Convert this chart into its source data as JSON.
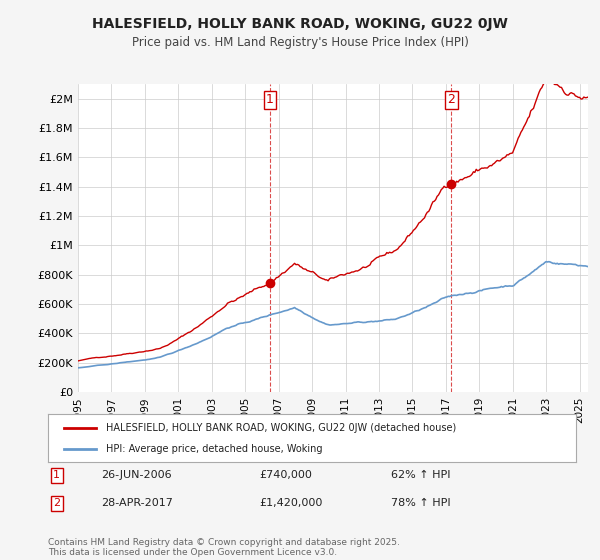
{
  "title": "HALESFIELD, HOLLY BANK ROAD, WOKING, GU22 0JW",
  "subtitle": "Price paid vs. HM Land Registry's House Price Index (HPI)",
  "ylabel_ticks": [
    "£0",
    "£200K",
    "£400K",
    "£600K",
    "£800K",
    "£1M",
    "£1.2M",
    "£1.4M",
    "£1.6M",
    "£1.8M",
    "£2M"
  ],
  "ytick_values": [
    0,
    200000,
    400000,
    600000,
    800000,
    1000000,
    1200000,
    1400000,
    1600000,
    1800000,
    2000000
  ],
  "ylim": [
    0,
    2100000
  ],
  "xlim_start": 1995.0,
  "xlim_end": 2025.5,
  "sale1_x": 2006.486,
  "sale1_y": 740000,
  "sale1_label": "1",
  "sale2_x": 2017.32,
  "sale2_y": 1420000,
  "sale2_label": "2",
  "house_color": "#cc0000",
  "hpi_color": "#6699cc",
  "background_color": "#f5f5f5",
  "plot_background": "#ffffff",
  "grid_color": "#cccccc",
  "legend_house": "HALESFIELD, HOLLY BANK ROAD, WOKING, GU22 0JW (detached house)",
  "legend_hpi": "HPI: Average price, detached house, Woking",
  "annotation1_date": "26-JUN-2006",
  "annotation1_price": "£740,000",
  "annotation1_pct": "62% ↑ HPI",
  "annotation2_date": "28-APR-2017",
  "annotation2_price": "£1,420,000",
  "annotation2_pct": "78% ↑ HPI",
  "footer": "Contains HM Land Registry data © Crown copyright and database right 2025.\nThis data is licensed under the Open Government Licence v3.0.",
  "xticks": [
    1995,
    1997,
    1999,
    2001,
    2003,
    2005,
    2007,
    2009,
    2011,
    2013,
    2015,
    2017,
    2019,
    2021,
    2023,
    2025
  ]
}
